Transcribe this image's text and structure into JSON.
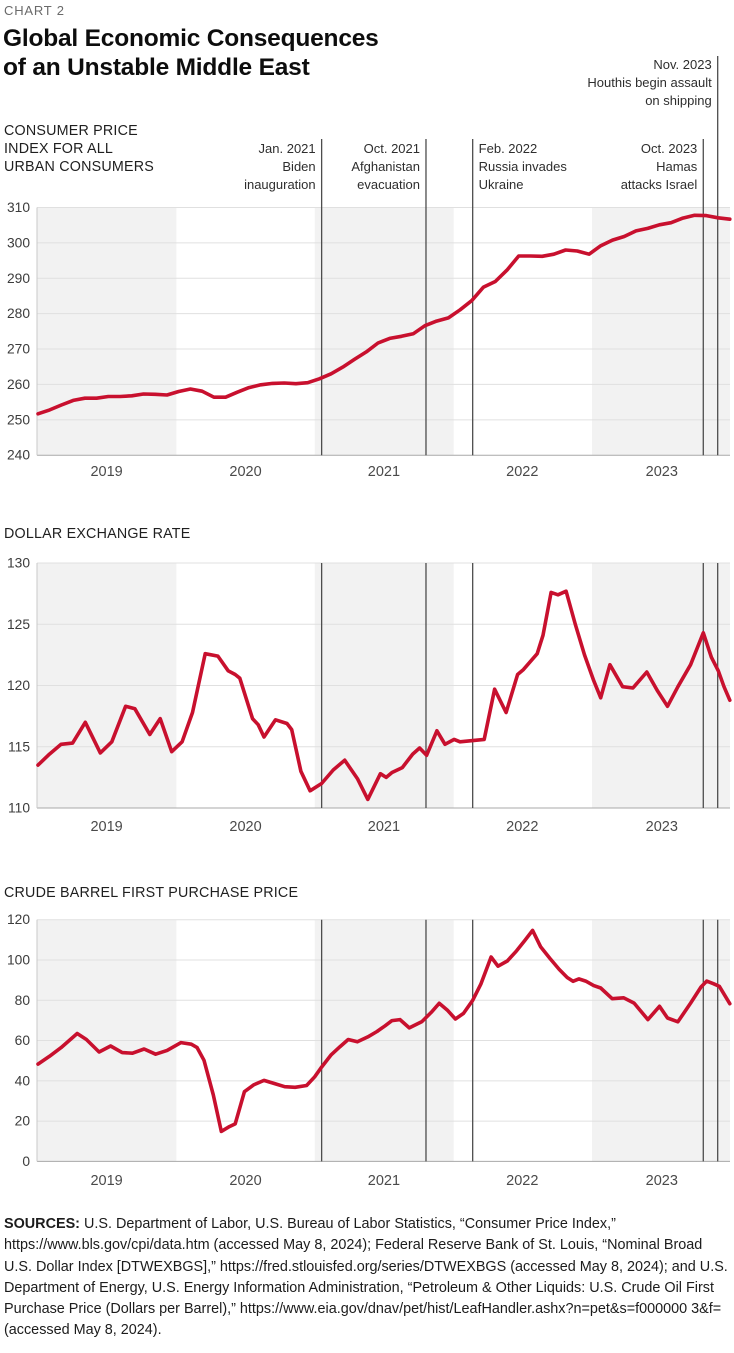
{
  "kicker": "CHART 2",
  "title_lines": [
    "Global Economic Consequences",
    "of an Unstable Middle East"
  ],
  "colors": {
    "line": "#c8102e",
    "band": "#f2f2f2",
    "grid": "#e0e0e0",
    "bottom_axis": "#a8a8a8",
    "left_spine": "#c9c9c9",
    "event_line": "#4d4d4d"
  },
  "x_axis": {
    "start_year": 2019,
    "year_labels": [
      {
        "label": "2019",
        "m": 5.95
      },
      {
        "label": "2020",
        "m": 18.0
      },
      {
        "label": "2021",
        "m": 30.0
      },
      {
        "label": "2022",
        "m": 42.0
      },
      {
        "label": "2023",
        "m": 54.1
      }
    ],
    "year_boundaries_m": [
      12,
      24,
      36.05,
      48.05
    ]
  },
  "events": [
    {
      "m": 24.6,
      "align": "right",
      "elevated": false,
      "lines": [
        "Jan. 2021",
        "Biden",
        "inauguration"
      ]
    },
    {
      "m": 33.65,
      "align": "right",
      "elevated": false,
      "lines": [
        "Oct. 2021",
        "Afghanistan",
        "evacuation"
      ]
    },
    {
      "m": 37.7,
      "align": "left",
      "elevated": false,
      "lines": [
        "Feb. 2022",
        "Russia invades",
        "Ukraine"
      ]
    },
    {
      "m": 57.7,
      "align": "right",
      "elevated": false,
      "lines": [
        "Oct. 2023",
        "Hamas",
        "attacks Israel"
      ]
    },
    {
      "m": 58.95,
      "align": "right",
      "elevated": true,
      "lines": [
        "Nov. 2023",
        "Houthis begin assault",
        "on shipping"
      ]
    }
  ],
  "chart_data": [
    {
      "id": "consumer-price-index",
      "type": "line",
      "title_lines": [
        "CONSUMER PRICE",
        "INDEX FOR ALL",
        "URBAN CONSUMERS"
      ],
      "ylim": [
        240,
        310
      ],
      "yticks": [
        240,
        250,
        260,
        270,
        280,
        290,
        300,
        310
      ],
      "x_unit": "months since Jan 2019, monthly data Jan 2019 - Dec 2023",
      "m_scale": 1.0169,
      "values": [
        251.7,
        252.8,
        254.2,
        255.5,
        256.1,
        256.1,
        256.6,
        256.6,
        256.8,
        257.3,
        257.2,
        257.0,
        258.0,
        258.7,
        258.1,
        256.4,
        256.4,
        257.8,
        259.1,
        259.9,
        260.3,
        260.4,
        260.2,
        260.5,
        261.6,
        263.0,
        264.9,
        267.1,
        269.2,
        271.7,
        273.0,
        273.6,
        274.3,
        276.6,
        277.9,
        278.8,
        281.1,
        283.7,
        287.5,
        289.1,
        292.3,
        296.3,
        296.3,
        296.2,
        296.8,
        298.0,
        297.7,
        296.8,
        299.2,
        300.8,
        301.8,
        303.4,
        304.1,
        305.1,
        305.7,
        307.0,
        307.8,
        307.7,
        307.1,
        306.7
      ]
    },
    {
      "id": "dollar-exchange-rate",
      "type": "line",
      "title_lines": [
        "DOLLAR EXCHANGE RATE"
      ],
      "ylim": [
        110,
        130
      ],
      "yticks": [
        110,
        115,
        120,
        125,
        130
      ],
      "x_unit": "months since Jan 2019, weekly data 2019 - Dec 2023",
      "m_scale": 1,
      "points": [
        [
          0,
          113.5
        ],
        [
          1,
          114.4
        ],
        [
          2,
          115.2
        ],
        [
          3,
          115.3
        ],
        [
          4.1,
          117.0
        ],
        [
          5.4,
          114.5
        ],
        [
          6.4,
          115.4
        ],
        [
          7.6,
          118.3
        ],
        [
          8.4,
          118.1
        ],
        [
          9.7,
          116.0
        ],
        [
          10.6,
          117.3
        ],
        [
          11.6,
          114.6
        ],
        [
          12.5,
          115.4
        ],
        [
          13.4,
          117.8
        ],
        [
          14.5,
          122.6
        ],
        [
          15.6,
          122.4
        ],
        [
          16.5,
          121.2
        ],
        [
          17.1,
          120.9
        ],
        [
          17.5,
          120.6
        ],
        [
          18.6,
          117.3
        ],
        [
          19.1,
          116.8
        ],
        [
          19.6,
          115.8
        ],
        [
          20.6,
          117.2
        ],
        [
          21.6,
          116.9
        ],
        [
          22.0,
          116.4
        ],
        [
          22.8,
          113.0
        ],
        [
          23.6,
          111.4
        ],
        [
          24.6,
          112.0
        ],
        [
          25.6,
          113.1
        ],
        [
          26.6,
          113.9
        ],
        [
          27.7,
          112.4
        ],
        [
          28.6,
          110.7
        ],
        [
          29.7,
          112.8
        ],
        [
          30.2,
          112.5
        ],
        [
          30.7,
          112.9
        ],
        [
          31.6,
          113.3
        ],
        [
          32.5,
          114.4
        ],
        [
          33.1,
          114.9
        ],
        [
          33.7,
          114.3
        ],
        [
          34.6,
          116.3
        ],
        [
          35.3,
          115.2
        ],
        [
          36.1,
          115.6
        ],
        [
          36.6,
          115.4
        ],
        [
          37.7,
          115.5
        ],
        [
          38.7,
          115.6
        ],
        [
          39.6,
          119.7
        ],
        [
          40.6,
          117.8
        ],
        [
          41.6,
          120.9
        ],
        [
          42.1,
          121.3
        ],
        [
          43.3,
          122.6
        ],
        [
          43.8,
          124.1
        ],
        [
          44.5,
          127.6
        ],
        [
          45.1,
          127.4
        ],
        [
          45.8,
          127.7
        ],
        [
          46.6,
          125.0
        ],
        [
          47.4,
          122.5
        ],
        [
          48.2,
          120.4
        ],
        [
          48.8,
          119.0
        ],
        [
          49.6,
          121.7
        ],
        [
          50.7,
          119.9
        ],
        [
          51.6,
          119.8
        ],
        [
          52.8,
          121.1
        ],
        [
          53.7,
          119.6
        ],
        [
          54.6,
          118.3
        ],
        [
          55.5,
          119.9
        ],
        [
          56.6,
          121.7
        ],
        [
          57.7,
          124.3
        ],
        [
          58.4,
          122.3
        ],
        [
          59.0,
          121.2
        ],
        [
          59.5,
          119.9
        ],
        [
          60,
          118.8
        ]
      ]
    },
    {
      "id": "crude-first-purchase-price",
      "type": "line",
      "title_lines": [
        "CRUDE BARREL FIRST PURCHASE PRICE"
      ],
      "ylim": [
        0,
        120
      ],
      "yticks": [
        0,
        20,
        40,
        60,
        80,
        100,
        120
      ],
      "x_unit": "months since Jan 2019, data 2019 - Dec 2023",
      "m_scale": 1,
      "points": [
        [
          0,
          48.3
        ],
        [
          1,
          52.2
        ],
        [
          2,
          56.5
        ],
        [
          3.4,
          63.5
        ],
        [
          4.2,
          60.5
        ],
        [
          5.3,
          54.3
        ],
        [
          6.3,
          57.3
        ],
        [
          7.3,
          54.0
        ],
        [
          8.2,
          53.7
        ],
        [
          9.2,
          55.8
        ],
        [
          10.2,
          53.2
        ],
        [
          11.2,
          55.1
        ],
        [
          12.4,
          59.0
        ],
        [
          13.3,
          58.2
        ],
        [
          13.8,
          56.5
        ],
        [
          14.4,
          50.2
        ],
        [
          15.2,
          33.0
        ],
        [
          15.9,
          14.9
        ],
        [
          16.6,
          17.3
        ],
        [
          17.1,
          18.6
        ],
        [
          17.9,
          34.6
        ],
        [
          18.7,
          38.0
        ],
        [
          19.6,
          40.2
        ],
        [
          20.6,
          38.5
        ],
        [
          21.4,
          37.1
        ],
        [
          22.3,
          36.8
        ],
        [
          23.3,
          37.7
        ],
        [
          24.0,
          42.0
        ],
        [
          24.6,
          46.8
        ],
        [
          25.4,
          52.8
        ],
        [
          26.2,
          57.0
        ],
        [
          26.9,
          60.5
        ],
        [
          27.7,
          59.4
        ],
        [
          28.6,
          61.8
        ],
        [
          29.4,
          64.5
        ],
        [
          30.1,
          67.3
        ],
        [
          30.7,
          69.9
        ],
        [
          31.4,
          70.4
        ],
        [
          32.2,
          66.3
        ],
        [
          33.3,
          69.4
        ],
        [
          34.1,
          74.0
        ],
        [
          34.8,
          78.5
        ],
        [
          35.5,
          75.1
        ],
        [
          36.2,
          70.7
        ],
        [
          36.9,
          73.5
        ],
        [
          37.7,
          80.0
        ],
        [
          38.4,
          88.0
        ],
        [
          39.3,
          101.5
        ],
        [
          39.9,
          96.9
        ],
        [
          40.7,
          99.5
        ],
        [
          41.5,
          104.5
        ],
        [
          42.2,
          109.5
        ],
        [
          42.9,
          114.7
        ],
        [
          43.6,
          106.5
        ],
        [
          44.4,
          100.8
        ],
        [
          45.2,
          95.3
        ],
        [
          45.9,
          91.3
        ],
        [
          46.4,
          89.4
        ],
        [
          46.9,
          90.6
        ],
        [
          47.5,
          89.5
        ],
        [
          48.2,
          87.3
        ],
        [
          48.8,
          86.1
        ],
        [
          49.8,
          80.8
        ],
        [
          50.8,
          81.2
        ],
        [
          51.7,
          78.6
        ],
        [
          52.9,
          70.4
        ],
        [
          53.9,
          77.0
        ],
        [
          54.6,
          71.2
        ],
        [
          55.5,
          69.3
        ],
        [
          56.6,
          78.6
        ],
        [
          57.5,
          86.6
        ],
        [
          58.0,
          89.5
        ],
        [
          58.6,
          88.2
        ],
        [
          59.1,
          86.9
        ],
        [
          60,
          78.3
        ]
      ]
    }
  ],
  "sources": {
    "label": "SOURCES:",
    "text": "U.S. Department of Labor, U.S. Bureau of Labor Statistics, “Consumer Price Index,” https://www.bls.gov/cpi/data.htm (accessed May 8, 2024); Federal Reserve Bank of St. Louis, “Nominal Broad U.S. Dollar Index [DTWEXBGS],” https://fred.stlouisfed.org/series/DTWEXBGS (accessed May 8, 2024); and U.S. Department of Energy, U.S. Energy Information Administration, “Petroleum & Other Liquids: U.S. Crude Oil First Purchase Price (Dollars per Barrel),” https://www.eia.gov/dnav/pet/hist/LeafHandler.ashx?n=pet&s=f000000 3&f= (accessed May 8, 2024)."
  }
}
